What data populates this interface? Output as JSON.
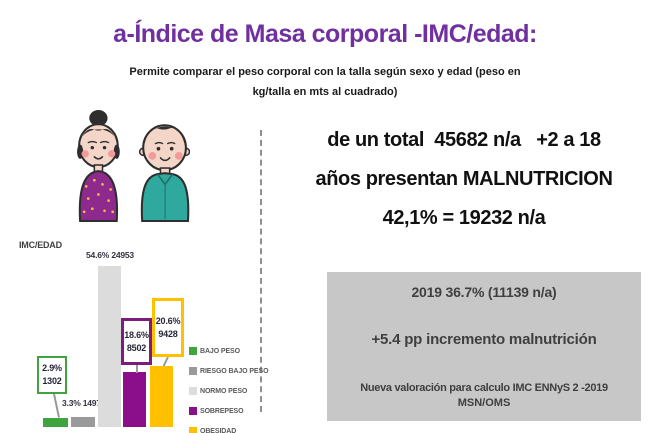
{
  "title": "a-Índice de Masa corporal -IMC/edad:",
  "subtitle": {
    "line1": "Permite comparar el peso corporal con la talla según sexo y edad (peso en",
    "line2": "kg/talla en mts al cuadrado)"
  },
  "summary": {
    "line1": "de un total  45682 n/a   +2 a 18",
    "line2": "años presentan MALNUTRICION",
    "line3": "42,1% = 19232 n/a"
  },
  "info_box": {
    "line1": "2019 36.7% (11139 n/a)",
    "line2": "+5.4 pp incremento malnutrición",
    "line3": "Nueva valoración para calculo IMC ENNyS 2 -2019",
    "line4": "MSN/OMS"
  },
  "chart_data": {
    "type": "bar",
    "title": "IMC/EDAD",
    "categories": [
      "BAJO PESO",
      "RIESGO BAJO PESO",
      "NORMO PESO",
      "SOBREPESO",
      "OBESIDAD"
    ],
    "values_pct": [
      2.9,
      3.3,
      54.6,
      18.6,
      20.6
    ],
    "counts": [
      1302,
      1497,
      24953,
      8502,
      9428
    ],
    "pct_labels": [
      "2.9%",
      "3.3%",
      "54.6%",
      "18.6%",
      "20.6%"
    ],
    "count_labels": [
      "1302",
      "1497",
      "24953",
      "8502",
      "9428"
    ],
    "colors": [
      "#3FA33F",
      "#9A9A9A",
      "#DCDCDC",
      "#8B0F8B",
      "#FFC000"
    ],
    "xlabel": "",
    "ylabel": "",
    "ylim": [
      0,
      60
    ],
    "grid": false,
    "legend_position": "right"
  },
  "colors": {
    "title": "#7030A0",
    "info_box_bg": "#C7C7C7",
    "callout_green_border": "#3FA33F",
    "callout_purple_border": "#7D1B7E",
    "callout_yellow_border": "#FFC000",
    "text_dark": "#1A1A1A"
  },
  "icons": {
    "woman_illustration": "woman-cartoon-icon",
    "man_illustration": "man-cartoon-icon"
  }
}
